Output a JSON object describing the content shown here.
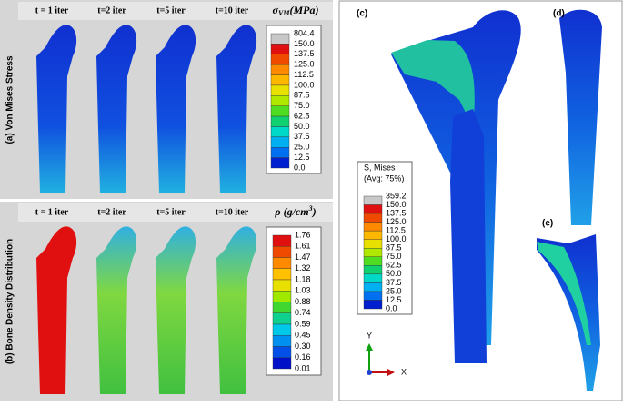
{
  "panel_a": {
    "label": "(a) Von Mises Stress",
    "columns": [
      "t = 1 iter",
      "t=2 iter",
      "t=5 iter",
      "t=10 iter"
    ],
    "legend_title": {
      "symbol": "σ",
      "sub": "VM",
      "unit": "(MPa)"
    },
    "legend": {
      "labels": [
        "804.4",
        "150.0",
        "137.5",
        "125.0",
        "112.5",
        "100.0",
        "87.5",
        "75.0",
        "62.5",
        "50.0",
        "37.5",
        "25.0",
        "12.5",
        "0.0"
      ],
      "colors": [
        "#c8c8c8",
        "#e01010",
        "#f04a00",
        "#ff8a00",
        "#ffb800",
        "#e8e000",
        "#b0e800",
        "#50dc20",
        "#10d070",
        "#00d8c8",
        "#00b0f0",
        "#0070f0",
        "#0020d0"
      ]
    }
  },
  "panel_b": {
    "label": "(b) Bone Density Distribution",
    "columns": [
      "t = 1 iter",
      "t=2 iter",
      "t=5 iter",
      "t=10 iter"
    ],
    "legend_title": {
      "symbol": "ρ (g/cm",
      "sup": "3",
      "end": ")"
    },
    "legend": {
      "labels": [
        "1.76",
        "1.61",
        "1.47",
        "1.32",
        "1.18",
        "1.03",
        "0.88",
        "0.74",
        "0.59",
        "0.45",
        "0.30",
        "0.16",
        "0.01"
      ],
      "colors": [
        "#e01010",
        "#f04a00",
        "#ff8a00",
        "#ffc000",
        "#e8e000",
        "#a0e800",
        "#40d830",
        "#10d090",
        "#00c8e8",
        "#0090f0",
        "#0050e8",
        "#0010c8"
      ]
    }
  },
  "panel_c": {
    "label": "(c)",
    "legend_title": [
      "S, Mises",
      "(Avg: 75%)"
    ],
    "legend": {
      "labels": [
        "359.2",
        "150.0",
        "137.5",
        "125.0",
        "112.5",
        "100.0",
        "87.5",
        "75.0",
        "62.5",
        "50.0",
        "37.5",
        "25.0",
        "12.5",
        "0.0"
      ],
      "colors": [
        "#c8c8c8",
        "#e01010",
        "#f04a00",
        "#ff8a00",
        "#ffb800",
        "#e8e000",
        "#b0e800",
        "#50dc20",
        "#10d070",
        "#00d8c8",
        "#00b0f0",
        "#0070f0",
        "#0020d0"
      ]
    },
    "axis_y": "Y",
    "axis_x": "X"
  },
  "panel_d": {
    "label": "(d)"
  },
  "panel_e": {
    "label": "(e)"
  }
}
